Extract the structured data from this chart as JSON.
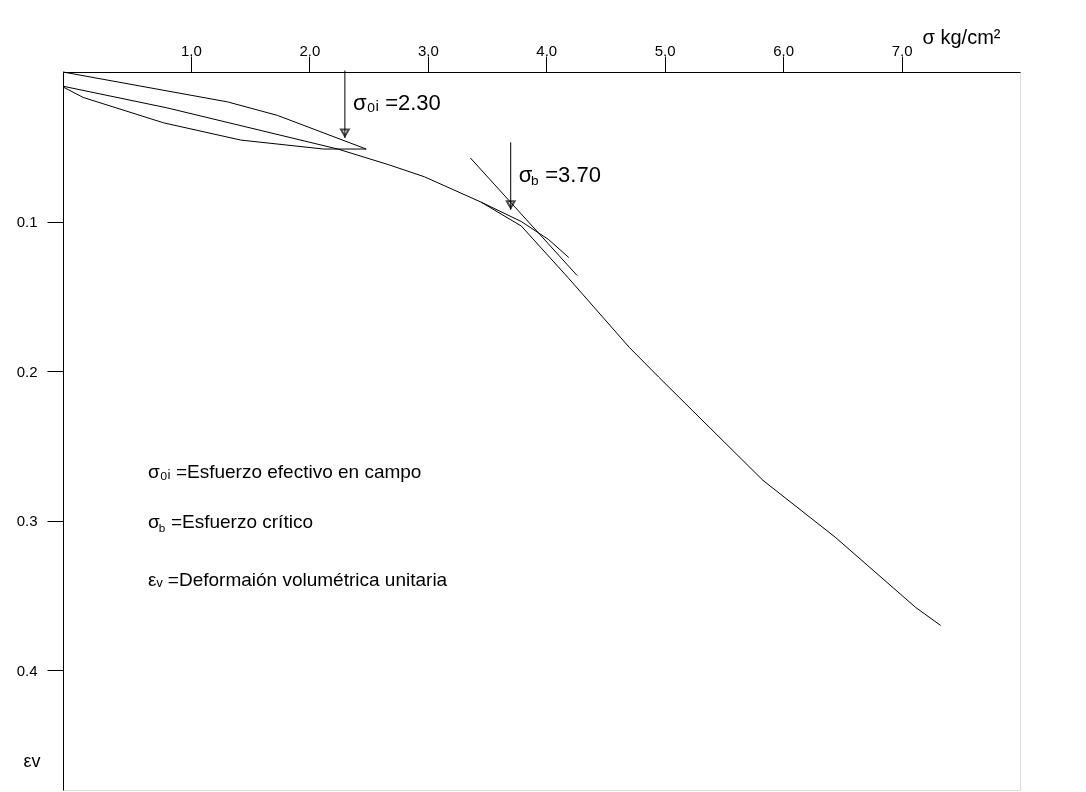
{
  "chart_data": {
    "type": "line",
    "xlabel": "σ kg/cm²",
    "ylabel": "εv",
    "xlim": [
      -0.08,
      8.0
    ],
    "ylim": [
      0.48,
      0
    ],
    "xticks": [
      {
        "value": 1,
        "label": "1.0"
      },
      {
        "value": 2,
        "label": "2.0"
      },
      {
        "value": 3,
        "label": "3.0"
      },
      {
        "value": 4,
        "label": "4.0"
      },
      {
        "value": 5,
        "label": "5.0"
      },
      {
        "value": 6,
        "label": "6.0"
      },
      {
        "value": 7,
        "label": "7.0"
      }
    ],
    "yticks": [
      0.1,
      0.2,
      0.3,
      0.4
    ],
    "grid": false,
    "marker": "none",
    "line_style": "solid",
    "series": [
      {
        "color": "#000000",
        "x": [
          -0.08,
          1.31,
          1.73,
          2.48
        ],
        "values": [
          0,
          0.02,
          0.029,
          0.0515
        ]
      },
      {
        "color": "#000000",
        "x": [
          2.48,
          2.12,
          1.42,
          0.77,
          0.09,
          -0.08
        ],
        "values": [
          0.0515,
          0.0515,
          0.0455,
          0.034,
          0.017,
          0.01
        ]
      },
      {
        "color": "#000000",
        "x": [
          -0.08,
          0.8,
          2.24,
          2.67,
          2.97,
          3.45,
          3.79,
          4.19,
          4.7,
          4.95,
          5.83,
          6.44,
          7.12,
          7.33
        ],
        "values": [
          0.0095,
          0.024,
          0.0515,
          0.062,
          0.07,
          0.087,
          0.103,
          0.138,
          0.184,
          0.204,
          0.273,
          0.311,
          0.358,
          0.37
        ]
      },
      {
        "color": "#000000",
        "x": [
          3.45,
          3.79,
          4.02,
          4.19
        ],
        "values": [
          0.087,
          0.1,
          0.112,
          0.124
        ]
      },
      {
        "color": "#000000",
        "x": [
          3.36,
          4.26
        ],
        "values": [
          0.0575,
          0.136
        ]
      }
    ],
    "annotations": [
      {
        "text": "σ₀ᵢ =2.30",
        "x": 2.3,
        "y": 0.044
      },
      {
        "text": "σ$_{b}$ =3.70",
        "x": 3.7,
        "y": 0.092
      },
      "σ₀ᵢ =Esfuerzo efectivo en campo",
      "σ$_{b}$ =Esfuerzo crítico",
      "εᵥ =Deformaión volumétrica unitaria"
    ]
  }
}
